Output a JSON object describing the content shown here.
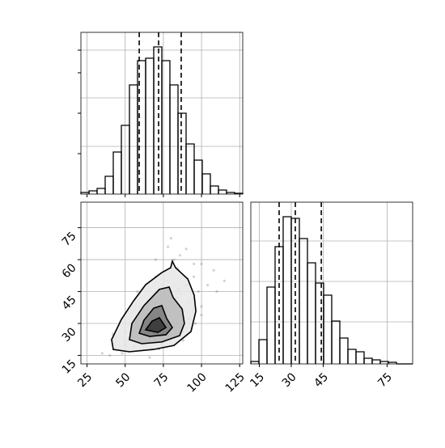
{
  "chart_data": [
    {
      "type": "histogram",
      "bins": [
        21,
        26.3,
        31.6,
        36.9,
        42.2,
        47.5,
        52.8,
        58.1,
        63.4,
        68.7,
        74,
        79.3,
        84.6,
        89.9,
        95.2,
        100.5,
        105.8,
        111.1,
        116.4,
        121.7,
        127
      ],
      "counts": [
        2,
        4,
        7,
        22,
        52,
        85,
        135,
        165,
        168,
        182,
        165,
        135,
        100,
        62,
        42,
        25,
        10,
        5,
        2,
        1
      ],
      "quantiles": [
        59.2,
        71.9,
        86.7
      ],
      "color": "#000000",
      "xlim": [
        21,
        127
      ],
      "ylim": [
        0,
        200
      ],
      "grid": true
    },
    {
      "type": "scatter_contour",
      "x": [
        45,
        50,
        52,
        55,
        58,
        60,
        62,
        63,
        65,
        66,
        68,
        70,
        70,
        72,
        73,
        75,
        76,
        78,
        80,
        82,
        84,
        85,
        88,
        90,
        92,
        95,
        98,
        100,
        104,
        108,
        40,
        48,
        56,
        64,
        72,
        80,
        88,
        96,
        60,
        68,
        76,
        84,
        92,
        100,
        55,
        65,
        75,
        85,
        95,
        70,
        78,
        86,
        62,
        74,
        82,
        90,
        58,
        66,
        88,
        94,
        35,
        42,
        110,
        115,
        58,
        70,
        80,
        90,
        100,
        50,
        62,
        74,
        86,
        66,
        78,
        84,
        72,
        68,
        76,
        80
      ],
      "y": [
        18,
        20,
        22,
        24,
        26,
        25,
        30,
        28,
        32,
        27,
        35,
        22,
        40,
        30,
        45,
        28,
        38,
        50,
        33,
        60,
        42,
        55,
        36,
        48,
        40,
        52,
        45,
        58,
        48,
        55,
        15,
        16,
        19,
        21,
        18,
        23,
        26,
        30,
        38,
        44,
        50,
        56,
        32,
        38,
        30,
        36,
        42,
        46,
        58,
        60,
        66,
        62,
        20,
        20,
        24,
        28,
        28,
        14,
        22,
        36,
        16,
        25,
        45,
        50,
        45,
        52,
        70,
        65,
        34,
        26,
        34,
        48,
        44,
        24,
        26,
        30,
        36,
        40,
        46,
        40
      ],
      "contours": [
        {
          "x": [
            42.2,
            41.1,
            47.5,
            55.5,
            63.4,
            74,
            79.8,
            80.9,
            83,
            91,
            95.2,
            96.3,
            93.1,
            82,
            68.7,
            52.8
          ],
          "y": [
            17.8,
            22.4,
            31.9,
            40.6,
            48.2,
            53.9,
            56.2,
            59.3,
            56.2,
            50.9,
            43.3,
            35.7,
            26.2,
            19.7,
            17.8,
            16.7
          ],
          "fill": "#e6e6e6"
        },
        {
          "x": [
            52.8,
            54.4,
            62.3,
            72.4,
            78.8,
            81.4,
            87.3,
            88.8,
            85.7,
            74,
            60.8
          ],
          "y": [
            22.4,
            30,
            38.4,
            46,
            47.1,
            42.2,
            36.8,
            30,
            24.3,
            21.3,
            20.5
          ],
          "fill": "#b8b8b8"
        },
        {
          "x": [
            59.2,
            62.3,
            68.7,
            74,
            77.2,
            80.9,
            76.7,
            66.1
          ],
          "y": [
            25.4,
            31.5,
            37.2,
            38.4,
            32.3,
            28.1,
            24.7,
            23.9
          ],
          "fill": "#7a7a7a"
        },
        {
          "x": [
            63.4,
            67.6,
            72.4,
            76.7,
            71.4
          ],
          "y": [
            27,
            31.1,
            32.7,
            28.1,
            25.8
          ],
          "fill": "#333333"
        }
      ],
      "color": "#808080",
      "xlim": [
        21,
        127
      ],
      "ylim": [
        11,
        87
      ],
      "xticks": [
        25,
        50,
        75,
        100,
        125
      ],
      "yticks": [
        15,
        30,
        45,
        60,
        75
      ],
      "grid": true
    },
    {
      "type": "histogram",
      "bins": [
        11,
        14.8,
        18.6,
        22.4,
        26.2,
        30,
        33.8,
        37.6,
        41.4,
        45.2,
        49,
        52.8,
        56.6,
        60.4,
        64.2,
        68,
        71.8,
        75.6,
        79.4,
        83.2,
        87
      ],
      "counts": [
        3,
        30,
        95,
        145,
        182,
        180,
        155,
        125,
        100,
        85,
        53,
        32,
        18,
        15,
        7,
        5,
        3,
        2,
        0,
        0
      ],
      "quantiles": [
        24.3,
        31.9,
        44.1
      ],
      "color": "#000000",
      "xlim": [
        11,
        87
      ],
      "ylim": [
        0,
        200
      ],
      "xticks": [
        15,
        30,
        45,
        75
      ],
      "grid": true
    }
  ]
}
